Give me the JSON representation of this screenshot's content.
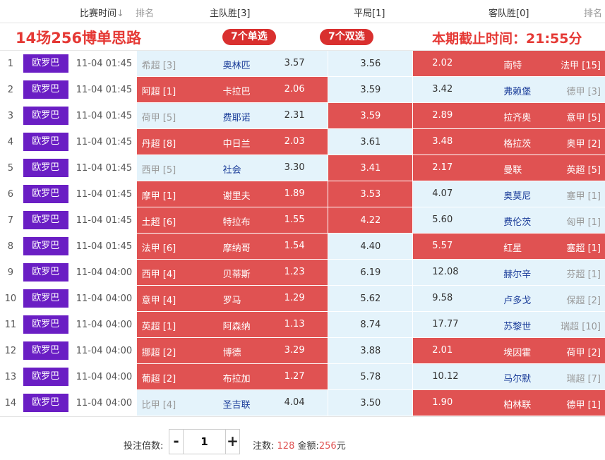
{
  "header": {
    "match_time_label": "比赛时间",
    "sort_icon": "arrow-down-icon",
    "rank_label": "排名",
    "home_win_label": "主队胜[3]",
    "draw_label": "平局[1]",
    "away_win_label": "客队胜[0]",
    "rank_label_right": "排名"
  },
  "banner": {
    "title": "14场256博单思路",
    "single_pill": "7个单选",
    "double_pill": "7个双选",
    "deadline": "本期截止时间：21:55分"
  },
  "colors": {
    "selected": "#e05252",
    "unselected": "#e4f3fb",
    "league_badge": "#6a1ec4",
    "accent_text": "#e53935"
  },
  "matches": [
    {
      "idx": "1",
      "league": "欧罗巴",
      "time": "11-04 01:45",
      "home_rank": "希超 [3]",
      "home_team": "奥林匹",
      "home_odd": "3.57",
      "draw_odd": "3.56",
      "away_odd": "2.02",
      "away_team": "南特",
      "away_rank": "法甲 [15]",
      "sel": [
        false,
        false,
        true
      ]
    },
    {
      "idx": "2",
      "league": "欧罗巴",
      "time": "11-04 01:45",
      "home_rank": "阿超 [1]",
      "home_team": "卡拉巴",
      "home_odd": "2.06",
      "draw_odd": "3.59",
      "away_odd": "3.42",
      "away_team": "弗赖堡",
      "away_rank": "德甲 [3]",
      "sel": [
        true,
        false,
        false
      ]
    },
    {
      "idx": "3",
      "league": "欧罗巴",
      "time": "11-04 01:45",
      "home_rank": "荷甲 [5]",
      "home_team": "费耶诺",
      "home_odd": "2.31",
      "draw_odd": "3.59",
      "away_odd": "2.89",
      "away_team": "拉齐奥",
      "away_rank": "意甲 [5]",
      "sel": [
        false,
        true,
        true
      ]
    },
    {
      "idx": "4",
      "league": "欧罗巴",
      "time": "11-04 01:45",
      "home_rank": "丹超 [8]",
      "home_team": "中日兰",
      "home_odd": "2.03",
      "draw_odd": "3.61",
      "away_odd": "3.48",
      "away_team": "格拉茨",
      "away_rank": "奥甲 [2]",
      "sel": [
        true,
        false,
        true
      ]
    },
    {
      "idx": "5",
      "league": "欧罗巴",
      "time": "11-04 01:45",
      "home_rank": "西甲 [5]",
      "home_team": "社会",
      "home_odd": "3.30",
      "draw_odd": "3.41",
      "away_odd": "2.17",
      "away_team": "曼联",
      "away_rank": "英超 [5]",
      "sel": [
        false,
        true,
        true
      ]
    },
    {
      "idx": "6",
      "league": "欧罗巴",
      "time": "11-04 01:45",
      "home_rank": "摩甲 [1]",
      "home_team": "谢里夫",
      "home_odd": "1.89",
      "draw_odd": "3.53",
      "away_odd": "4.07",
      "away_team": "奥莫尼",
      "away_rank": "塞甲 [1]",
      "sel": [
        true,
        true,
        false
      ]
    },
    {
      "idx": "7",
      "league": "欧罗巴",
      "time": "11-04 01:45",
      "home_rank": "土超 [6]",
      "home_team": "特拉布",
      "home_odd": "1.55",
      "draw_odd": "4.22",
      "away_odd": "5.60",
      "away_team": "费伦茨",
      "away_rank": "匈甲 [1]",
      "sel": [
        true,
        true,
        false
      ]
    },
    {
      "idx": "8",
      "league": "欧罗巴",
      "time": "11-04 01:45",
      "home_rank": "法甲 [6]",
      "home_team": "摩纳哥",
      "home_odd": "1.54",
      "draw_odd": "4.40",
      "away_odd": "5.57",
      "away_team": "红星",
      "away_rank": "塞超 [1]",
      "sel": [
        true,
        false,
        true
      ]
    },
    {
      "idx": "9",
      "league": "欧罗巴",
      "time": "11-04 04:00",
      "home_rank": "西甲 [4]",
      "home_team": "贝蒂斯",
      "home_odd": "1.23",
      "draw_odd": "6.19",
      "away_odd": "12.08",
      "away_team": "赫尔辛",
      "away_rank": "芬超 [1]",
      "sel": [
        true,
        false,
        false
      ]
    },
    {
      "idx": "10",
      "league": "欧罗巴",
      "time": "11-04 04:00",
      "home_rank": "意甲 [4]",
      "home_team": "罗马",
      "home_odd": "1.29",
      "draw_odd": "5.62",
      "away_odd": "9.58",
      "away_team": "卢多戈",
      "away_rank": "保超 [2]",
      "sel": [
        true,
        false,
        false
      ]
    },
    {
      "idx": "11",
      "league": "欧罗巴",
      "time": "11-04 04:00",
      "home_rank": "英超 [1]",
      "home_team": "阿森纳",
      "home_odd": "1.13",
      "draw_odd": "8.74",
      "away_odd": "17.77",
      "away_team": "苏黎世",
      "away_rank": "瑞超 [10]",
      "sel": [
        true,
        false,
        false
      ]
    },
    {
      "idx": "12",
      "league": "欧罗巴",
      "time": "11-04 04:00",
      "home_rank": "挪超 [2]",
      "home_team": "博德",
      "home_odd": "3.29",
      "draw_odd": "3.88",
      "away_odd": "2.01",
      "away_team": "埃因霍",
      "away_rank": "荷甲 [2]",
      "sel": [
        true,
        false,
        true
      ]
    },
    {
      "idx": "13",
      "league": "欧罗巴",
      "time": "11-04 04:00",
      "home_rank": "葡超 [2]",
      "home_team": "布拉加",
      "home_odd": "1.27",
      "draw_odd": "5.78",
      "away_odd": "10.12",
      "away_team": "马尔默",
      "away_rank": "瑞超 [7]",
      "sel": [
        true,
        false,
        false
      ]
    },
    {
      "idx": "14",
      "league": "欧罗巴",
      "time": "11-04 04:00",
      "home_rank": "比甲 [4]",
      "home_team": "圣吉联",
      "home_odd": "4.04",
      "draw_odd": "3.50",
      "away_odd": "1.90",
      "away_team": "柏林联",
      "away_rank": "德甲 [1]",
      "sel": [
        false,
        false,
        true
      ]
    }
  ],
  "footer": {
    "multiplier_label": "投注倍数:",
    "minus_label": "-",
    "plus_label": "+",
    "multiplier_value": "1",
    "count_label": "注数:",
    "count_value": "128",
    "amount_label": "金额:",
    "amount_value": "256",
    "currency": "元"
  }
}
